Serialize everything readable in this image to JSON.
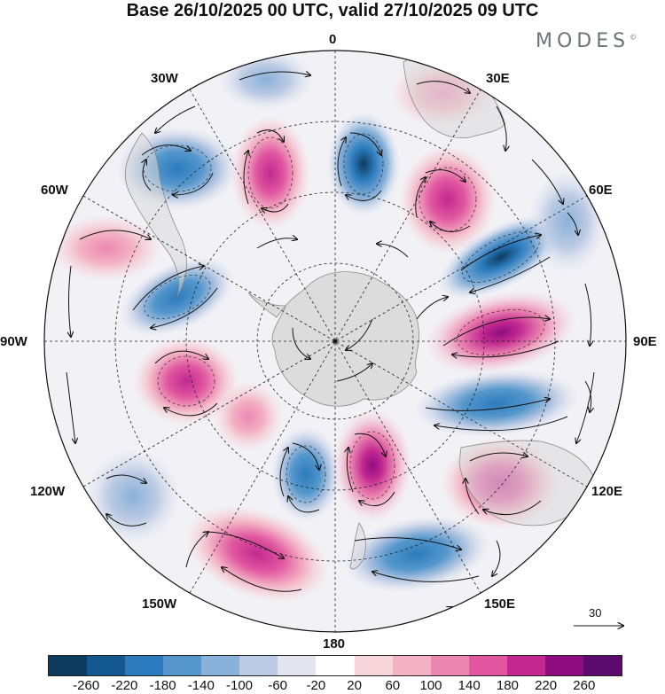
{
  "title": "Base 26/10/2025 00 UTC, valid 27/10/2025 09 UTC",
  "brand": "MODES",
  "brand_mark": "©",
  "longitude_labels": {
    "lon_0": "0",
    "lon_30e": "30E",
    "lon_60e": "60E",
    "lon_90e": "90E",
    "lon_120e": "120E",
    "lon_150e": "150E",
    "lon_180": "180",
    "lon_150w": "150W",
    "lon_120w": "120W",
    "lon_90w": "90W",
    "lon_60w": "60W",
    "lon_30w": "30W"
  },
  "reference_vector": {
    "value": "30",
    "icon": "arrow-right-icon"
  },
  "colorbar": {
    "labels": [
      "-260",
      "-220",
      "-180",
      "-140",
      "-100",
      "-60",
      "-20",
      "20",
      "60",
      "100",
      "140",
      "180",
      "220",
      "260"
    ],
    "colors": [
      "#0d3c5e",
      "#13598f",
      "#2b7bbd",
      "#5597cc",
      "#89b1d9",
      "#bccbe4",
      "#e3e5f1",
      "#ffffff",
      "#f7d5da",
      "#f3b1c4",
      "#ec87b1",
      "#e0569f",
      "#c22890",
      "#8e0d80",
      "#5b0a6e"
    ]
  },
  "colors": {
    "land": "#d9d9d9",
    "coast": "#8a8a8a",
    "grid": "#222222"
  }
}
